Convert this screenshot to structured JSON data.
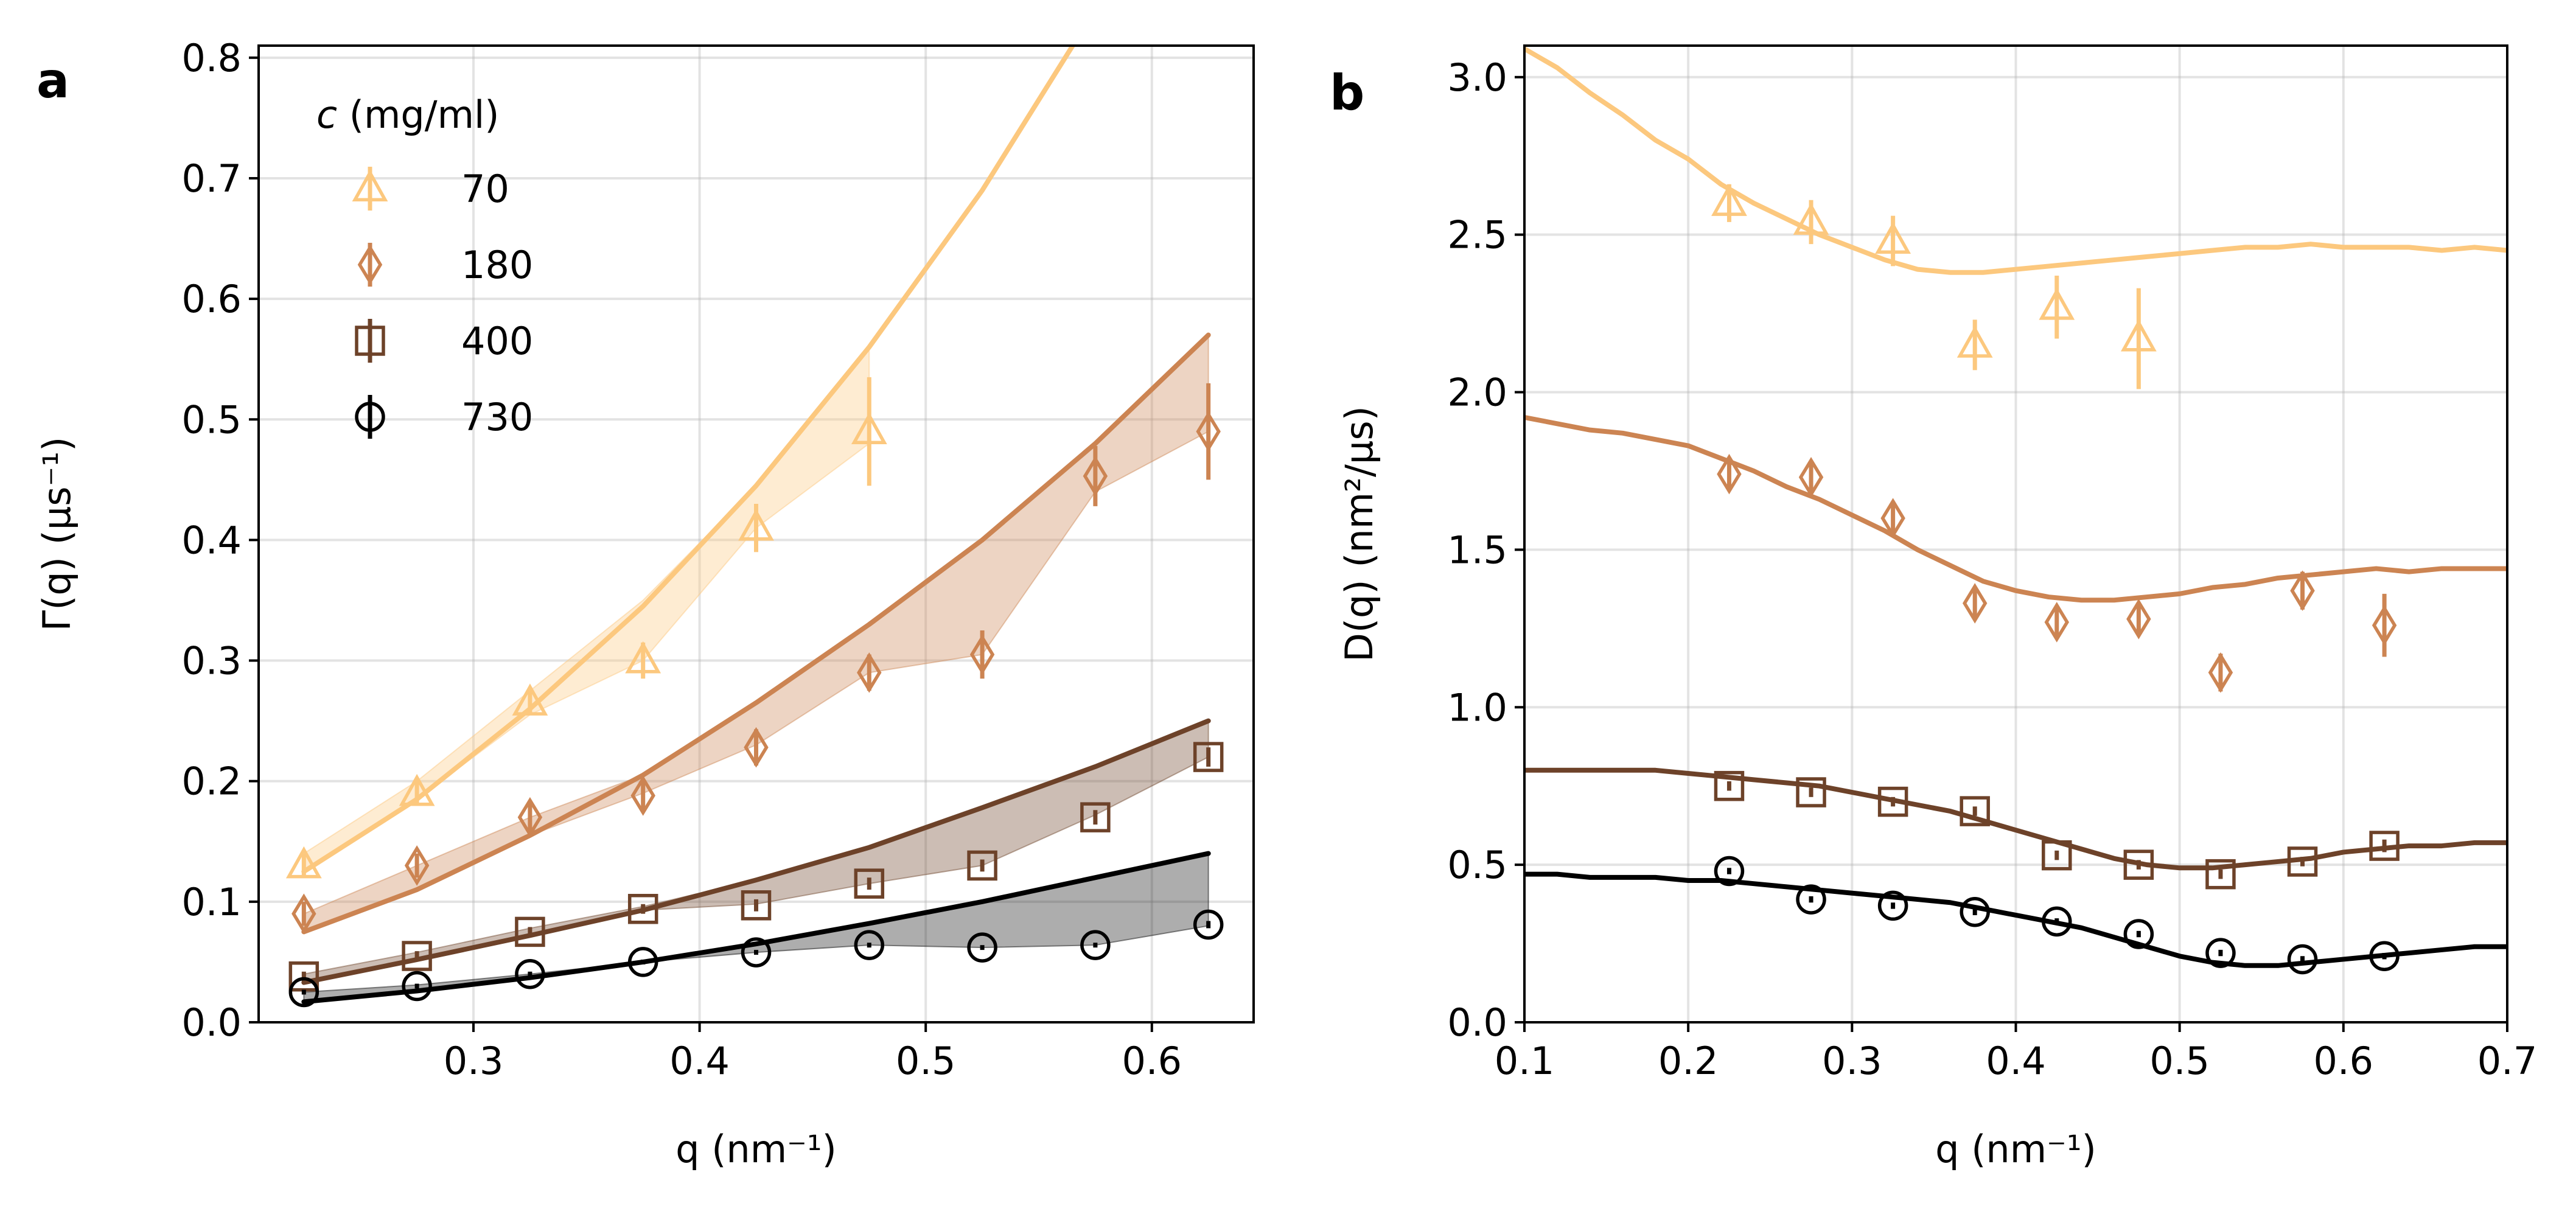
{
  "chart_data": [
    {
      "panel_label": "a",
      "type": "line",
      "xlabel": "q (nm⁻¹)",
      "ylabel": "Γ(q) (μs⁻¹)",
      "xlim": [
        0.205,
        0.645
      ],
      "ylim": [
        0.0,
        0.81
      ],
      "xticks": [
        0.3,
        0.4,
        0.5,
        0.6
      ],
      "yticks": [
        0.0,
        0.1,
        0.2,
        0.3,
        0.4,
        0.5,
        0.6,
        0.7,
        0.8
      ],
      "xtick_labels": [
        "0.3",
        "0.4",
        "0.5",
        "0.6"
      ],
      "ytick_labels": [
        "0.0",
        "0.1",
        "0.2",
        "0.3",
        "0.4",
        "0.5",
        "0.6",
        "0.7",
        "0.8"
      ],
      "grid": true,
      "legend": {
        "title_var": "c",
        "title_unit": " (mg/ml)",
        "placement": "upper-left",
        "entries": [
          "70",
          "180",
          "400",
          "730"
        ]
      },
      "series": [
        {
          "name": "70",
          "color": "#fcc87e",
          "marker": "triangle",
          "line_x": [
            0.225,
            0.275,
            0.325,
            0.375,
            0.425,
            0.475,
            0.525,
            0.575,
            0.625
          ],
          "line_y": [
            0.125,
            0.185,
            0.26,
            0.345,
            0.445,
            0.56,
            0.69,
            0.84,
            1.0
          ],
          "band_upper": [
            0.14,
            0.2,
            0.275,
            0.35,
            0.445,
            0.56
          ],
          "band_lower": [
            0.125,
            0.185,
            0.255,
            0.3,
            0.41,
            0.48
          ],
          "band_x": [
            0.225,
            0.275,
            0.325,
            0.375,
            0.425,
            0.475
          ],
          "points_x": [
            0.225,
            0.275,
            0.325,
            0.375,
            0.425,
            0.475
          ],
          "points_y": [
            0.13,
            0.19,
            0.265,
            0.3,
            0.41,
            0.49
          ],
          "errors": [
            0.01,
            0.01,
            0.01,
            0.015,
            0.02,
            0.045
          ]
        },
        {
          "name": "180",
          "color": "#cc8452",
          "marker": "diamond",
          "line_x": [
            0.225,
            0.275,
            0.325,
            0.375,
            0.425,
            0.475,
            0.525,
            0.575,
            0.625
          ],
          "line_y": [
            0.075,
            0.11,
            0.155,
            0.205,
            0.265,
            0.33,
            0.4,
            0.48,
            0.57
          ],
          "band_upper": [
            0.09,
            0.13,
            0.17,
            0.205,
            0.265,
            0.33,
            0.4,
            0.48,
            0.57
          ],
          "band_lower": [
            0.075,
            0.11,
            0.155,
            0.19,
            0.23,
            0.29,
            0.305,
            0.44,
            0.49
          ],
          "band_x": [
            0.225,
            0.275,
            0.325,
            0.375,
            0.425,
            0.475,
            0.525,
            0.575,
            0.625
          ],
          "points_x": [
            0.225,
            0.275,
            0.325,
            0.375,
            0.425,
            0.475,
            0.525,
            0.575,
            0.625
          ],
          "points_y": [
            0.09,
            0.13,
            0.17,
            0.188,
            0.228,
            0.29,
            0.305,
            0.453,
            0.49
          ],
          "errors": [
            0.01,
            0.01,
            0.012,
            0.012,
            0.015,
            0.015,
            0.02,
            0.025,
            0.04
          ]
        },
        {
          "name": "400",
          "color": "#6d4229",
          "marker": "square",
          "line_x": [
            0.225,
            0.275,
            0.325,
            0.375,
            0.425,
            0.475,
            0.525,
            0.575,
            0.625
          ],
          "line_y": [
            0.033,
            0.052,
            0.072,
            0.093,
            0.118,
            0.145,
            0.178,
            0.212,
            0.25
          ],
          "band_upper": [
            0.04,
            0.058,
            0.078,
            0.096,
            0.118,
            0.145,
            0.178,
            0.212,
            0.25
          ],
          "band_lower": [
            0.033,
            0.052,
            0.072,
            0.093,
            0.098,
            0.115,
            0.13,
            0.172,
            0.22
          ],
          "band_x": [
            0.225,
            0.275,
            0.325,
            0.375,
            0.425,
            0.475,
            0.525,
            0.575,
            0.625
          ],
          "points_x": [
            0.225,
            0.275,
            0.325,
            0.375,
            0.425,
            0.475,
            0.525,
            0.575,
            0.625
          ],
          "points_y": [
            0.038,
            0.055,
            0.075,
            0.094,
            0.097,
            0.115,
            0.13,
            0.17,
            0.22
          ],
          "errors": [
            0.004,
            0.004,
            0.004,
            0.004,
            0.005,
            0.005,
            0.005,
            0.006,
            0.008
          ]
        },
        {
          "name": "730",
          "color": "#000000",
          "marker": "circle",
          "line_x": [
            0.225,
            0.275,
            0.325,
            0.375,
            0.425,
            0.475,
            0.525,
            0.575,
            0.625
          ],
          "line_y": [
            0.017,
            0.026,
            0.037,
            0.05,
            0.065,
            0.082,
            0.1,
            0.12,
            0.14
          ],
          "band_upper": [
            0.025,
            0.031,
            0.04,
            0.05,
            0.065,
            0.082,
            0.1,
            0.12,
            0.14
          ],
          "band_lower": [
            0.017,
            0.026,
            0.037,
            0.05,
            0.058,
            0.064,
            0.062,
            0.064,
            0.08
          ],
          "band_x": [
            0.225,
            0.275,
            0.325,
            0.375,
            0.425,
            0.475,
            0.525,
            0.575,
            0.625
          ],
          "points_x": [
            0.225,
            0.275,
            0.325,
            0.375,
            0.425,
            0.475,
            0.525,
            0.575,
            0.625
          ],
          "points_y": [
            0.025,
            0.03,
            0.04,
            0.05,
            0.058,
            0.064,
            0.062,
            0.064,
            0.081
          ],
          "errors": [
            0.002,
            0.002,
            0.002,
            0.002,
            0.002,
            0.002,
            0.002,
            0.002,
            0.003
          ]
        }
      ]
    },
    {
      "panel_label": "b",
      "type": "line",
      "xlabel": "q (nm⁻¹)",
      "ylabel": "D(q) (nm²/μs)",
      "xlim": [
        0.1,
        0.7
      ],
      "ylim": [
        0.0,
        3.1
      ],
      "xticks": [
        0.1,
        0.2,
        0.3,
        0.4,
        0.5,
        0.6,
        0.7
      ],
      "yticks": [
        0.0,
        0.5,
        1.0,
        1.5,
        2.0,
        2.5,
        3.0
      ],
      "xtick_labels": [
        "0.1",
        "0.2",
        "0.3",
        "0.4",
        "0.5",
        "0.6",
        "0.7"
      ],
      "ytick_labels": [
        "0.0",
        "0.5",
        "1.0",
        "1.5",
        "2.0",
        "2.5",
        "3.0"
      ],
      "grid": true,
      "series": [
        {
          "name": "70",
          "color": "#fcc87e",
          "marker": "triangle",
          "line_x": [
            0.1,
            0.12,
            0.14,
            0.16,
            0.18,
            0.2,
            0.22,
            0.24,
            0.26,
            0.28,
            0.3,
            0.32,
            0.34,
            0.36,
            0.38,
            0.4,
            0.42,
            0.44,
            0.46,
            0.48,
            0.5,
            0.52,
            0.54,
            0.56,
            0.58,
            0.6,
            0.62,
            0.64,
            0.66,
            0.68,
            0.7
          ],
          "line_y": [
            3.09,
            3.03,
            2.95,
            2.88,
            2.8,
            2.74,
            2.66,
            2.6,
            2.55,
            2.5,
            2.46,
            2.42,
            2.39,
            2.38,
            2.38,
            2.39,
            2.4,
            2.41,
            2.42,
            2.43,
            2.44,
            2.45,
            2.46,
            2.46,
            2.47,
            2.46,
            2.46,
            2.46,
            2.45,
            2.46,
            2.45
          ],
          "points_x": [
            0.225,
            0.275,
            0.325,
            0.375,
            0.425,
            0.475
          ],
          "points_y": [
            2.6,
            2.54,
            2.48,
            2.15,
            2.27,
            2.17
          ],
          "errors": [
            0.06,
            0.07,
            0.08,
            0.08,
            0.1,
            0.16
          ]
        },
        {
          "name": "180",
          "color": "#cc8452",
          "marker": "diamond",
          "line_x": [
            0.1,
            0.12,
            0.14,
            0.16,
            0.18,
            0.2,
            0.22,
            0.24,
            0.26,
            0.28,
            0.3,
            0.32,
            0.34,
            0.36,
            0.38,
            0.4,
            0.42,
            0.44,
            0.46,
            0.48,
            0.5,
            0.52,
            0.54,
            0.56,
            0.58,
            0.6,
            0.62,
            0.64,
            0.66,
            0.68,
            0.7
          ],
          "line_y": [
            1.92,
            1.9,
            1.88,
            1.87,
            1.85,
            1.83,
            1.79,
            1.75,
            1.7,
            1.66,
            1.61,
            1.56,
            1.5,
            1.45,
            1.4,
            1.37,
            1.35,
            1.34,
            1.34,
            1.35,
            1.36,
            1.38,
            1.39,
            1.41,
            1.42,
            1.43,
            1.44,
            1.43,
            1.44,
            1.44,
            1.44
          ],
          "points_x": [
            0.225,
            0.275,
            0.325,
            0.375,
            0.425,
            0.475,
            0.525,
            0.575,
            0.625
          ],
          "points_y": [
            1.74,
            1.73,
            1.6,
            1.33,
            1.27,
            1.28,
            1.11,
            1.37,
            1.26
          ],
          "errors": [
            0.05,
            0.05,
            0.05,
            0.05,
            0.05,
            0.05,
            0.06,
            0.06,
            0.1
          ]
        },
        {
          "name": "400",
          "color": "#6d4229",
          "marker": "square",
          "line_x": [
            0.1,
            0.12,
            0.14,
            0.16,
            0.18,
            0.2,
            0.22,
            0.24,
            0.26,
            0.28,
            0.3,
            0.32,
            0.34,
            0.36,
            0.38,
            0.4,
            0.42,
            0.44,
            0.46,
            0.48,
            0.5,
            0.52,
            0.54,
            0.56,
            0.58,
            0.6,
            0.62,
            0.64,
            0.66,
            0.68,
            0.7
          ],
          "line_y": [
            0.8,
            0.8,
            0.8,
            0.8,
            0.8,
            0.79,
            0.78,
            0.77,
            0.76,
            0.75,
            0.73,
            0.71,
            0.69,
            0.67,
            0.64,
            0.61,
            0.58,
            0.55,
            0.52,
            0.5,
            0.49,
            0.49,
            0.5,
            0.51,
            0.52,
            0.54,
            0.55,
            0.56,
            0.56,
            0.57,
            0.57
          ],
          "points_x": [
            0.225,
            0.275,
            0.325,
            0.375,
            0.425,
            0.475,
            0.525,
            0.575,
            0.625
          ],
          "points_y": [
            0.75,
            0.73,
            0.7,
            0.67,
            0.53,
            0.5,
            0.47,
            0.51,
            0.56
          ],
          "errors": [
            0.015,
            0.015,
            0.015,
            0.015,
            0.015,
            0.015,
            0.015,
            0.015,
            0.02
          ]
        },
        {
          "name": "730",
          "color": "#000000",
          "marker": "circle",
          "line_x": [
            0.1,
            0.12,
            0.14,
            0.16,
            0.18,
            0.2,
            0.22,
            0.24,
            0.26,
            0.28,
            0.3,
            0.32,
            0.34,
            0.36,
            0.38,
            0.4,
            0.42,
            0.44,
            0.46,
            0.48,
            0.5,
            0.52,
            0.54,
            0.56,
            0.58,
            0.6,
            0.62,
            0.64,
            0.66,
            0.68,
            0.7
          ],
          "line_y": [
            0.47,
            0.47,
            0.46,
            0.46,
            0.46,
            0.45,
            0.45,
            0.44,
            0.43,
            0.42,
            0.41,
            0.4,
            0.39,
            0.38,
            0.36,
            0.34,
            0.32,
            0.3,
            0.27,
            0.24,
            0.21,
            0.19,
            0.18,
            0.18,
            0.19,
            0.2,
            0.21,
            0.22,
            0.23,
            0.24,
            0.24
          ],
          "points_x": [
            0.225,
            0.275,
            0.325,
            0.375,
            0.425,
            0.475,
            0.525,
            0.575,
            0.625
          ],
          "points_y": [
            0.48,
            0.39,
            0.37,
            0.35,
            0.32,
            0.28,
            0.22,
            0.2,
            0.21
          ],
          "errors": [
            0.01,
            0.01,
            0.01,
            0.01,
            0.01,
            0.01,
            0.01,
            0.01,
            0.01
          ]
        }
      ]
    }
  ]
}
